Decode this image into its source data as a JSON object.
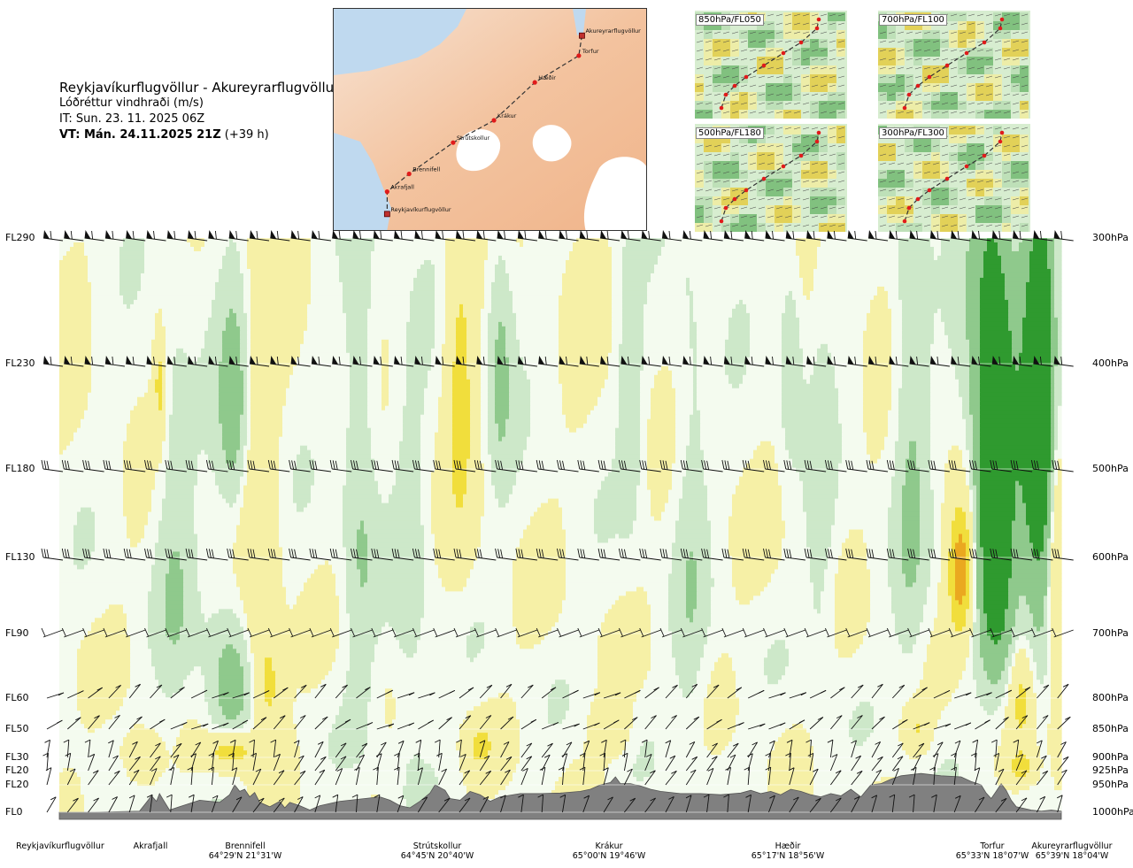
{
  "header": {
    "title": "Reykjavíkurflugvöllur - Akureyrarflugvöllur",
    "subtitle": "Lóðréttur vindhraði (m/s)",
    "init_time": "IT: Sun. 23. 11. 2025 06Z",
    "valid_label": "VT: Mán. 24.11.2025 21Z",
    "valid_offset": "(+39 h)"
  },
  "map": {
    "points": [
      {
        "name": "Akureyrarflugvöllur",
        "fx": 0.79,
        "fy": 0.12,
        "terminal": true
      },
      {
        "name": "Torfur",
        "fx": 0.78,
        "fy": 0.21,
        "terminal": false
      },
      {
        "name": "Hæðir",
        "fx": 0.64,
        "fy": 0.33,
        "terminal": false
      },
      {
        "name": "Krákur",
        "fx": 0.51,
        "fy": 0.5,
        "terminal": false
      },
      {
        "name": "Strútskollur",
        "fx": 0.38,
        "fy": 0.6,
        "terminal": false
      },
      {
        "name": "Brennifell",
        "fx": 0.24,
        "fy": 0.74,
        "terminal": false
      },
      {
        "name": "Akrafjall",
        "fx": 0.17,
        "fy": 0.82,
        "terminal": false
      },
      {
        "name": "Reykjavíkurflugvöllur",
        "fx": 0.17,
        "fy": 0.92,
        "terminal": true
      }
    ]
  },
  "insets": [
    {
      "label": "850hPa/FL050"
    },
    {
      "label": "700hPa/FL100"
    },
    {
      "label": "500hPa/FL180"
    },
    {
      "label": "300hPa/FL300"
    }
  ],
  "chart_data": {
    "type": "heatmap",
    "title": "Reykjavíkurflugvöllur - Akureyrarflugvöllur",
    "colorbar_unit": "m/s",
    "colors": {
      "strong_up": "#2f9a2f",
      "up": "#8fc98c",
      "weak_up": "#cde8c9",
      "neutral": "#f4fbef",
      "weak_down": "#f6f0a6",
      "down": "#f1de3c",
      "strong_down": "#eaa820",
      "terrain": "#808080"
    },
    "levels_left": [
      {
        "label": "FL290",
        "hpa": 300
      },
      {
        "label": "FL230",
        "hpa": 400
      },
      {
        "label": "FL180",
        "hpa": 500
      },
      {
        "label": "FL130",
        "hpa": 600
      },
      {
        "label": "FL90",
        "hpa": 700
      },
      {
        "label": "FL60",
        "hpa": 800
      },
      {
        "label": "FL50",
        "hpa": 850
      },
      {
        "label": "FL30",
        "hpa": 900
      },
      {
        "label": "FL20",
        "hpa": 925
      },
      {
        "label": "FL20",
        "hpa": 950
      },
      {
        "label": "FL0",
        "hpa": 1000
      }
    ],
    "levels_right": [
      "300hPa",
      "400hPa",
      "500hPa",
      "600hPa",
      "700hPa",
      "800hPa",
      "850hPa",
      "900hPa",
      "925hPa",
      "950hPa",
      "1000hPa"
    ],
    "waypoints": [
      {
        "name": "Reykjavíkurflugvöllur",
        "coord": "",
        "dist": 0.0
      },
      {
        "name": "Akrafjall",
        "coord": "",
        "dist": 0.09
      },
      {
        "name": "Brennifell",
        "coord": "64°29'N 21°31'W",
        "dist": 0.185
      },
      {
        "name": "Strútskollur",
        "coord": "64°45'N 20°40'W",
        "dist": 0.38
      },
      {
        "name": "Krákur",
        "coord": "65°00'N 19°46'W",
        "dist": 0.555
      },
      {
        "name": "Hæðir",
        "coord": "65°17'N 18°56'W",
        "dist": 0.735
      },
      {
        "name": "Torfur",
        "coord": "65°33'N 18°07'W",
        "dist": 0.953
      },
      {
        "name": "Akureyrarflugvöllur",
        "coord": "65°39'N 18°04'W",
        "dist": 1.0
      }
    ],
    "terrain_pressure_hpa": [
      [
        0.0,
        1000
      ],
      [
        0.035,
        1000
      ],
      [
        0.08,
        998
      ],
      [
        0.087,
        982
      ],
      [
        0.092,
        970
      ],
      [
        0.097,
        980
      ],
      [
        0.1,
        966
      ],
      [
        0.104,
        978
      ],
      [
        0.11,
        996
      ],
      [
        0.12,
        990
      ],
      [
        0.14,
        978
      ],
      [
        0.16,
        982
      ],
      [
        0.17,
        968
      ],
      [
        0.175,
        950
      ],
      [
        0.18,
        962
      ],
      [
        0.185,
        958
      ],
      [
        0.19,
        972
      ],
      [
        0.195,
        964
      ],
      [
        0.2,
        982
      ],
      [
        0.21,
        990
      ],
      [
        0.22,
        980
      ],
      [
        0.225,
        992
      ],
      [
        0.23,
        982
      ],
      [
        0.24,
        988
      ],
      [
        0.25,
        996
      ],
      [
        0.26,
        988
      ],
      [
        0.28,
        980
      ],
      [
        0.3,
        976
      ],
      [
        0.32,
        972
      ],
      [
        0.33,
        978
      ],
      [
        0.34,
        988
      ],
      [
        0.35,
        992
      ],
      [
        0.36,
        980
      ],
      [
        0.37,
        965
      ],
      [
        0.375,
        950
      ],
      [
        0.385,
        960
      ],
      [
        0.39,
        975
      ],
      [
        0.4,
        978
      ],
      [
        0.41,
        962
      ],
      [
        0.42,
        968
      ],
      [
        0.43,
        980
      ],
      [
        0.44,
        972
      ],
      [
        0.46,
        966
      ],
      [
        0.48,
        966
      ],
      [
        0.5,
        965
      ],
      [
        0.52,
        962
      ],
      [
        0.53,
        958
      ],
      [
        0.54,
        950
      ],
      [
        0.55,
        946
      ],
      [
        0.555,
        936
      ],
      [
        0.56,
        948
      ],
      [
        0.57,
        948
      ],
      [
        0.58,
        952
      ],
      [
        0.59,
        958
      ],
      [
        0.6,
        962
      ],
      [
        0.62,
        966
      ],
      [
        0.64,
        966
      ],
      [
        0.66,
        968
      ],
      [
        0.68,
        965
      ],
      [
        0.69,
        960
      ],
      [
        0.7,
        966
      ],
      [
        0.71,
        962
      ],
      [
        0.72,
        968
      ],
      [
        0.73,
        958
      ],
      [
        0.74,
        962
      ],
      [
        0.75,
        968
      ],
      [
        0.76,
        972
      ],
      [
        0.77,
        966
      ],
      [
        0.78,
        970
      ],
      [
        0.79,
        958
      ],
      [
        0.8,
        972
      ],
      [
        0.81,
        950
      ],
      [
        0.82,
        948
      ],
      [
        0.83,
        940
      ],
      [
        0.84,
        934
      ],
      [
        0.86,
        930
      ],
      [
        0.88,
        934
      ],
      [
        0.9,
        936
      ],
      [
        0.91,
        944
      ],
      [
        0.92,
        950
      ],
      [
        0.925,
        965
      ],
      [
        0.93,
        975
      ],
      [
        0.935,
        962
      ],
      [
        0.94,
        948
      ],
      [
        0.945,
        960
      ],
      [
        0.95,
        978
      ],
      [
        0.955,
        990
      ],
      [
        0.97,
        996
      ],
      [
        0.98,
        998
      ],
      [
        0.99,
        996
      ],
      [
        1.0,
        998
      ]
    ],
    "w_cores": [
      {
        "x": 0.1,
        "hpa": 420,
        "sx": 0.004,
        "sy": 35,
        "w": -0.6
      },
      {
        "x": 0.175,
        "hpa": 440,
        "sx": 0.012,
        "sy": 80,
        "w": 0.5
      },
      {
        "x": 0.17,
        "hpa": 780,
        "sx": 0.018,
        "sy": 90,
        "w": 0.45
      },
      {
        "x": 0.2,
        "hpa": 570,
        "sx": 0.012,
        "sy": 200,
        "w": -0.4
      },
      {
        "x": 0.21,
        "hpa": 780,
        "sx": 0.01,
        "sy": 60,
        "w": -0.5
      },
      {
        "x": 0.17,
        "hpa": 890,
        "sx": 0.018,
        "sy": 25,
        "w": -0.8
      },
      {
        "x": 0.08,
        "hpa": 900,
        "sx": 0.012,
        "sy": 30,
        "w": -0.5
      },
      {
        "x": 0.115,
        "hpa": 600,
        "sx": 0.014,
        "sy": 170,
        "w": 0.3
      },
      {
        "x": 0.3,
        "hpa": 530,
        "sx": 0.012,
        "sy": 200,
        "w": 0.35
      },
      {
        "x": 0.4,
        "hpa": 420,
        "sx": 0.01,
        "sy": 110,
        "w": -0.6
      },
      {
        "x": 0.35,
        "hpa": 650,
        "sx": 0.012,
        "sy": 180,
        "w": 0.25
      },
      {
        "x": 0.44,
        "hpa": 400,
        "sx": 0.009,
        "sy": 80,
        "w": 0.4
      },
      {
        "x": 0.42,
        "hpa": 880,
        "sx": 0.01,
        "sy": 30,
        "w": -0.5
      },
      {
        "x": 0.55,
        "hpa": 850,
        "sx": 0.012,
        "sy": 30,
        "w": -0.4
      },
      {
        "x": 0.57,
        "hpa": 430,
        "sx": 0.008,
        "sy": 90,
        "w": 0.3
      },
      {
        "x": 0.63,
        "hpa": 600,
        "sx": 0.012,
        "sy": 240,
        "w": 0.25
      },
      {
        "x": 0.73,
        "hpa": 400,
        "sx": 0.008,
        "sy": 60,
        "w": 0.35
      },
      {
        "x": 0.76,
        "hpa": 600,
        "sx": 0.01,
        "sy": 200,
        "w": 0.2
      },
      {
        "x": 0.85,
        "hpa": 450,
        "sx": 0.012,
        "sy": 250,
        "w": 0.35
      },
      {
        "x": 0.855,
        "hpa": 850,
        "sx": 0.009,
        "sy": 30,
        "w": -0.5
      },
      {
        "x": 0.9,
        "hpa": 620,
        "sx": 0.009,
        "sy": 60,
        "w": -1.1
      },
      {
        "x": 0.935,
        "hpa": 520,
        "sx": 0.012,
        "sy": 150,
        "w": 1.3
      },
      {
        "x": 0.925,
        "hpa": 420,
        "sx": 0.016,
        "sy": 160,
        "w": 0.5
      },
      {
        "x": 0.96,
        "hpa": 800,
        "sx": 0.008,
        "sy": 60,
        "w": -0.5
      },
      {
        "x": 0.97,
        "hpa": 450,
        "sx": 0.015,
        "sy": 120,
        "w": 0.45
      },
      {
        "x": 0.98,
        "hpa": 440,
        "sx": 0.012,
        "sy": 180,
        "w": 1.0
      },
      {
        "x": 0.995,
        "hpa": 600,
        "sx": 0.006,
        "sy": 180,
        "w": -0.6
      },
      {
        "x": 0.96,
        "hpa": 920,
        "sx": 0.01,
        "sy": 20,
        "w": -0.6
      }
    ]
  }
}
